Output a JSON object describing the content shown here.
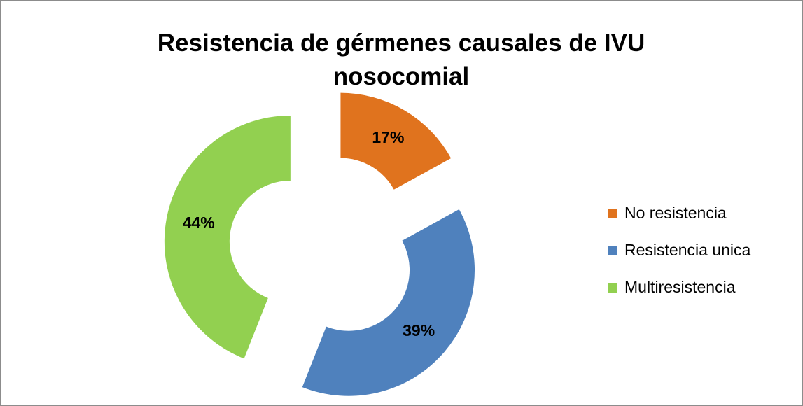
{
  "chart_data": {
    "type": "donut",
    "title": "Resistencia de gérmenes causales de IVU nosocomial",
    "categories": [
      "No resistencia",
      "Resistencia unica",
      "Multiresistencia"
    ],
    "values": [
      17,
      39,
      44
    ],
    "value_labels": [
      "17%",
      "39%",
      "44%"
    ],
    "colors": [
      "#e0731e",
      "#4f81bd",
      "#92d050"
    ],
    "legend": "right"
  }
}
